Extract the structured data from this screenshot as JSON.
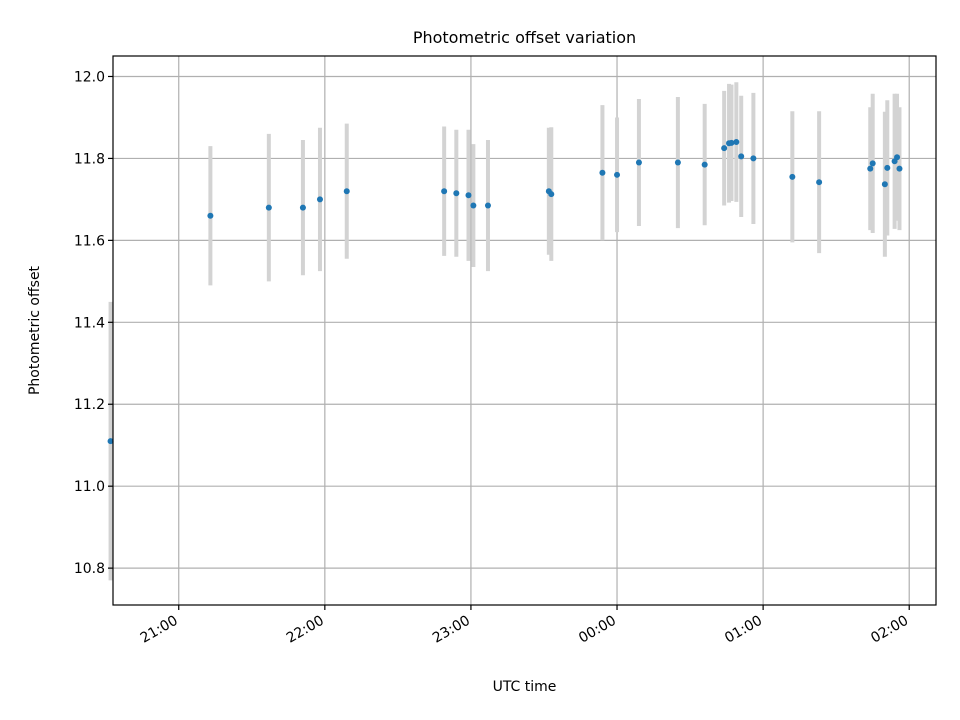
{
  "chart_data": {
    "type": "scatter",
    "title": "Photometric offset variation",
    "xlabel": "UTC time",
    "ylabel": "Photometric offset",
    "x_axis_kind": "time (HH:MM), spanning midnight",
    "xlim": [
      "20:33",
      "02:11"
    ],
    "ylim": [
      10.71,
      12.05
    ],
    "xticks": [
      "21:00",
      "22:00",
      "23:00",
      "00:00",
      "01:00",
      "02:00"
    ],
    "yticks": [
      "10.8",
      "11.0",
      "11.2",
      "11.4",
      "11.6",
      "11.8",
      "12.0"
    ],
    "grid": true,
    "legend": false,
    "colors": {
      "marker": "#1f77b4",
      "errorbar": "#d3d3d3",
      "grid": "#b0b0b0"
    },
    "series": [
      {
        "marker": "dot",
        "has_error_bars": true,
        "points": [
          {
            "x": "20:32",
            "y": 11.11,
            "err": 0.34
          },
          {
            "x": "21:13",
            "y": 11.66,
            "err": 0.17
          },
          {
            "x": "21:37",
            "y": 11.68,
            "err": 0.18
          },
          {
            "x": "21:51",
            "y": 11.68,
            "err": 0.165
          },
          {
            "x": "21:58",
            "y": 11.7,
            "err": 0.175
          },
          {
            "x": "22:09",
            "y": 11.72,
            "err": 0.165
          },
          {
            "x": "22:49",
            "y": 11.72,
            "err": 0.158
          },
          {
            "x": "22:54",
            "y": 11.715,
            "err": 0.155
          },
          {
            "x": "22:59",
            "y": 11.71,
            "err": 0.16
          },
          {
            "x": "23:01",
            "y": 11.685,
            "err": 0.15
          },
          {
            "x": "23:07",
            "y": 11.685,
            "err": 0.16
          },
          {
            "x": "23:32",
            "y": 11.72,
            "err": 0.155
          },
          {
            "x": "23:33",
            "y": 11.713,
            "err": 0.163
          },
          {
            "x": "23:54",
            "y": 11.765,
            "err": 0.165
          },
          {
            "x": "00:00",
            "y": 11.76,
            "err": 0.14
          },
          {
            "x": "00:09",
            "y": 11.79,
            "err": 0.155
          },
          {
            "x": "00:25",
            "y": 11.79,
            "err": 0.16
          },
          {
            "x": "00:36",
            "y": 11.785,
            "err": 0.148
          },
          {
            "x": "00:44",
            "y": 11.825,
            "err": 0.14
          },
          {
            "x": "00:46",
            "y": 11.837,
            "err": 0.145
          },
          {
            "x": "00:47",
            "y": 11.838,
            "err": 0.142
          },
          {
            "x": "00:49",
            "y": 11.84,
            "err": 0.146
          },
          {
            "x": "00:51",
            "y": 11.805,
            "err": 0.148
          },
          {
            "x": "00:56",
            "y": 11.8,
            "err": 0.16
          },
          {
            "x": "01:12",
            "y": 11.755,
            "err": 0.16
          },
          {
            "x": "01:23",
            "y": 11.742,
            "err": 0.173
          },
          {
            "x": "01:44",
            "y": 11.775,
            "err": 0.15
          },
          {
            "x": "01:45",
            "y": 11.788,
            "err": 0.17
          },
          {
            "x": "01:50",
            "y": 11.737,
            "err": 0.177
          },
          {
            "x": "01:51",
            "y": 11.777,
            "err": 0.165
          },
          {
            "x": "01:54",
            "y": 11.793,
            "err": 0.165
          },
          {
            "x": "01:55",
            "y": 11.803,
            "err": 0.155
          },
          {
            "x": "01:56",
            "y": 11.775,
            "err": 0.15
          }
        ]
      }
    ]
  }
}
